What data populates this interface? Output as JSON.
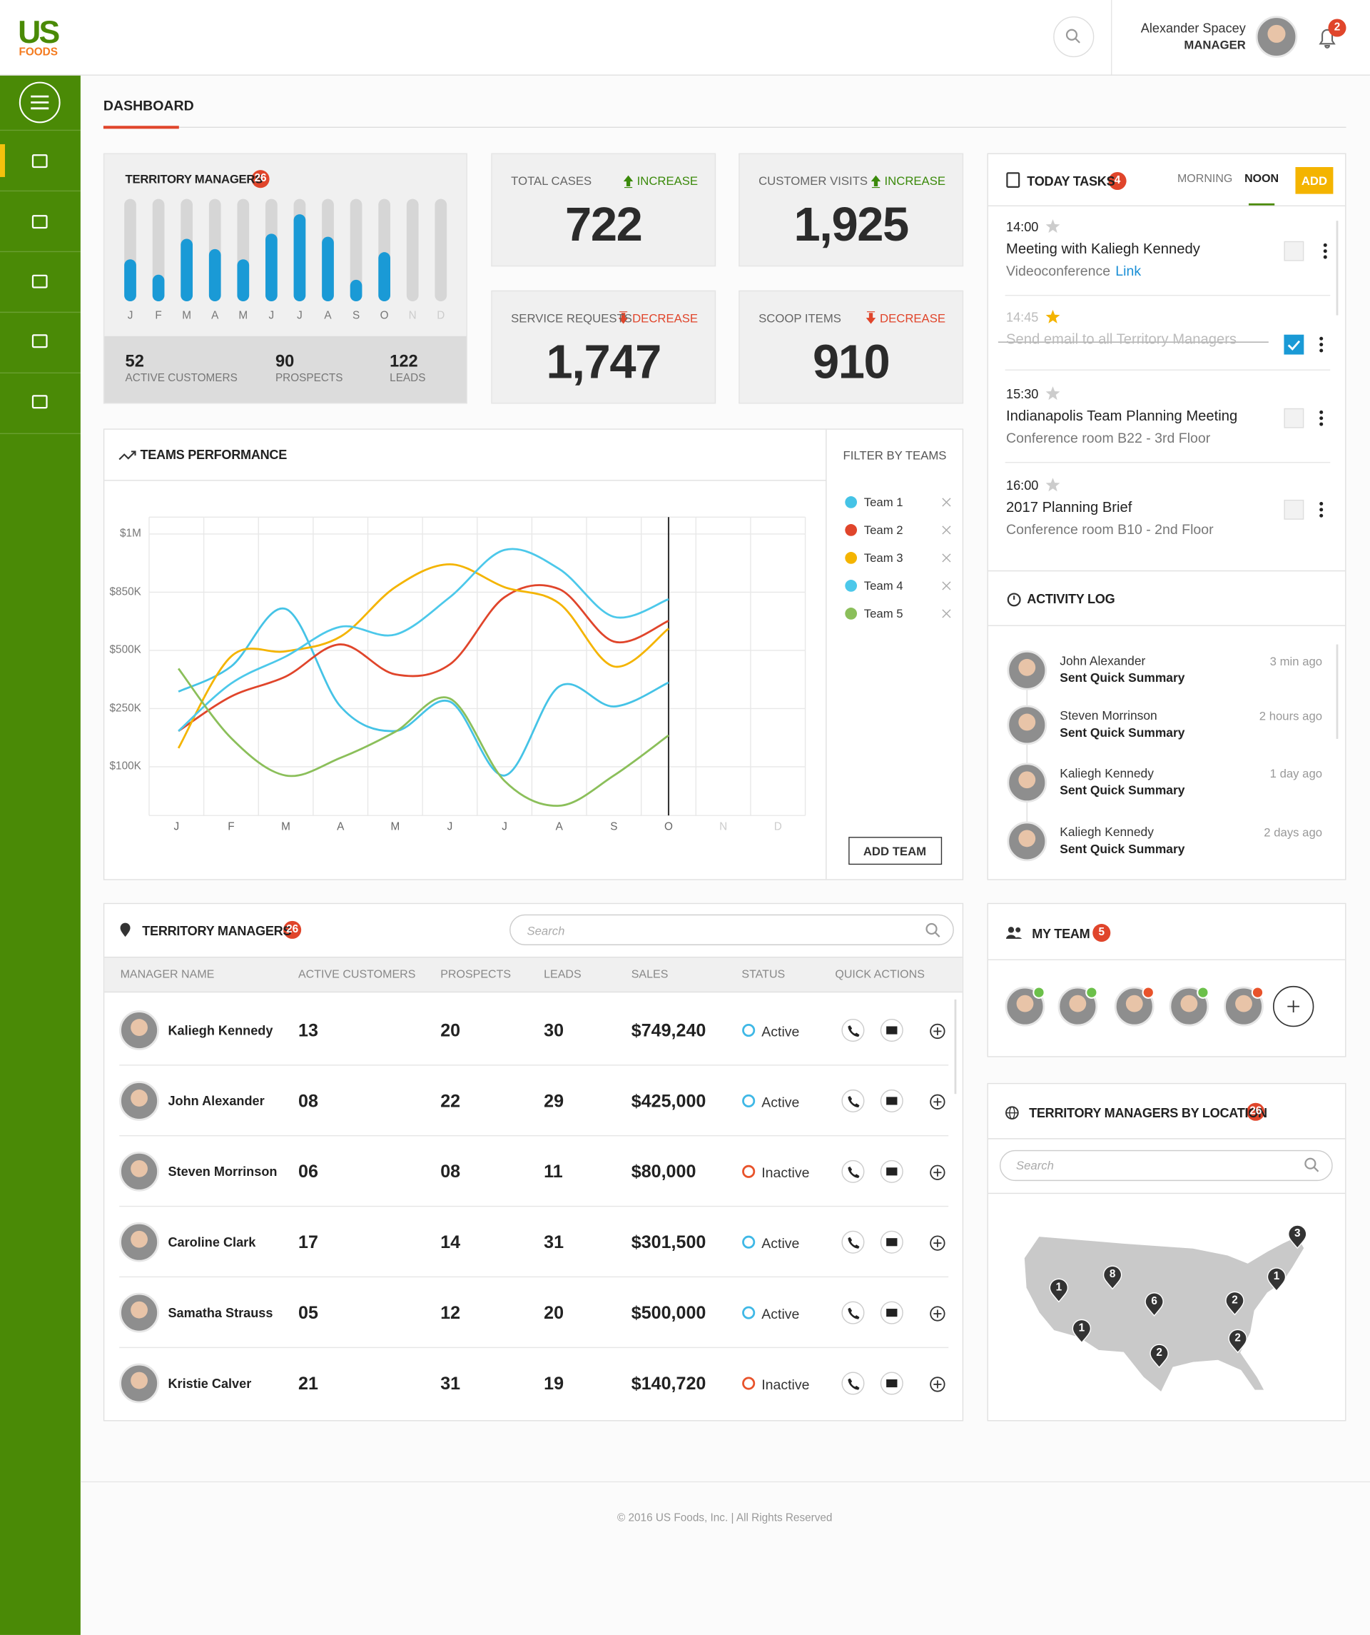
{
  "header": {
    "logo_main": "US",
    "logo_sub": "FOODS",
    "user_name": "Alexander Spacey",
    "user_role": "MANAGER",
    "notifications": "2"
  },
  "page_title": "DASHBOARD",
  "territory_summary": {
    "title": "TERRITORY MANAGERS",
    "count": "26",
    "chart_data": {
      "type": "bar",
      "categories": [
        "J",
        "F",
        "M",
        "A",
        "M",
        "J",
        "J",
        "A",
        "S",
        "O",
        "N",
        "D"
      ],
      "values": [
        41,
        26,
        61,
        51,
        41,
        66,
        85,
        63,
        21,
        48,
        null,
        null
      ],
      "ylim": [
        0,
        100
      ],
      "color": "#1a9ad6",
      "track_color": "#d6d6d6"
    },
    "stats": [
      {
        "value": "52",
        "label": "ACTIVE CUSTOMERS"
      },
      {
        "value": "90",
        "label": "PROSPECTS"
      },
      {
        "value": "122",
        "label": "LEADS"
      }
    ]
  },
  "kpis": [
    {
      "label": "TOTAL CASES",
      "trend": "INCREASE",
      "direction": "up",
      "value": "722"
    },
    {
      "label": "CUSTOMER VISITS",
      "trend": "INCREASE",
      "direction": "up",
      "value": "1,925"
    },
    {
      "label": "SERVICE REQUESTS",
      "trend": "DECREASE",
      "direction": "down",
      "value": "1,747"
    },
    {
      "label": "SCOOP ITEMS",
      "trend": "DECREASE",
      "direction": "down",
      "value": "910"
    }
  ],
  "teams_performance": {
    "title": "TEAMS PERFORMANCE",
    "filter_title": "FILTER BY TEAMS",
    "add_button": "ADD TEAM",
    "chart_data": {
      "type": "line",
      "categories": [
        "J",
        "F",
        "M",
        "A",
        "M",
        "J",
        "J",
        "A",
        "S",
        "O",
        "N",
        "D"
      ],
      "series": [
        {
          "name": "Team 1",
          "color": "#45c3e6",
          "values": [
            323000,
            431000,
            749000,
            259000,
            192000,
            280000,
            82000,
            345000,
            259000,
            362000,
            null,
            null
          ]
        },
        {
          "name": "Team 2",
          "color": "#e0452b",
          "values": [
            192000,
            302000,
            388000,
            536000,
            397000,
            440000,
            820000,
            858000,
            553000,
            678000,
            null,
            null
          ]
        },
        {
          "name": "Team 3",
          "color": "#f4b400",
          "values": [
            148000,
            474000,
            496000,
            583000,
            863000,
            922000,
            863000,
            783000,
            431000,
            631000,
            null,
            null
          ]
        },
        {
          "name": "Team 4",
          "color": "#4cc8ea",
          "values": [
            192000,
            358000,
            474000,
            642000,
            595000,
            820000,
            959000,
            910000,
            702000,
            808000,
            null,
            null
          ]
        },
        {
          "name": "Team 5",
          "color": "#8bbf5a",
          "values": [
            422000,
            174000,
            82000,
            123000,
            190000,
            293000,
            71000,
            20000,
            82000,
            181000,
            null,
            null
          ]
        }
      ],
      "ylim": [
        0,
        1100000
      ],
      "yticks": [
        {
          "value": 100000,
          "label": "$100K"
        },
        {
          "value": 250000,
          "label": "$250K"
        },
        {
          "value": 500000,
          "label": "$500K"
        },
        {
          "value": 850000,
          "label": "$850K"
        },
        {
          "value": 1000000,
          "label": "$1M"
        }
      ],
      "grid": true
    }
  },
  "territory_table": {
    "title": "TERRITORY MANAGERS",
    "count": "26",
    "search_placeholder": "Search",
    "columns": [
      "MANAGER NAME",
      "ACTIVE CUSTOMERS",
      "PROSPECTS",
      "LEADS",
      "SALES",
      "STATUS",
      "QUICK ACTIONS"
    ],
    "rows": [
      {
        "name": "Kaliegh Kennedy",
        "active": "13",
        "prospects": "20",
        "leads": "30",
        "sales": "$749,240",
        "status": "Active",
        "status_color": "#3fb8e6"
      },
      {
        "name": "John Alexander",
        "active": "08",
        "prospects": "22",
        "leads": "29",
        "sales": "$425,000",
        "status": "Active",
        "status_color": "#3fb8e6"
      },
      {
        "name": "Steven Morrinson",
        "active": "06",
        "prospects": "08",
        "leads": "11",
        "sales": "$80,000",
        "status": "Inactive",
        "status_color": "#e8532b"
      },
      {
        "name": "Caroline Clark",
        "active": "17",
        "prospects": "14",
        "leads": "31",
        "sales": "$301,500",
        "status": "Active",
        "status_color": "#3fb8e6"
      },
      {
        "name": "Samatha Strauss",
        "active": "05",
        "prospects": "12",
        "leads": "20",
        "sales": "$500,000",
        "status": "Active",
        "status_color": "#3fb8e6"
      },
      {
        "name": "Kristie Calver",
        "active": "21",
        "prospects": "31",
        "leads": "19",
        "sales": "$140,720",
        "status": "Inactive",
        "status_color": "#e8532b"
      }
    ]
  },
  "tasks": {
    "title": "TODAY TASKS",
    "count": "4",
    "tabs": [
      "MORNING",
      "NOON"
    ],
    "active_tab": 1,
    "add": "ADD",
    "items": [
      {
        "time": "14:00",
        "title": "Meeting with Kaliegh Kennedy",
        "subtitle": "Videoconference",
        "link": "Link",
        "starred": false,
        "done": false
      },
      {
        "time": "14:45",
        "title": "Send email to all Territory Managers",
        "starred": true,
        "done": true
      },
      {
        "time": "15:30",
        "title": "Indianapolis Team Planning Meeting",
        "subtitle": "Conference room B22 - 3rd Floor",
        "starred": false,
        "done": false
      },
      {
        "time": "16:00",
        "title": "2017 Planning Brief",
        "subtitle": "Conference room B10 - 2nd Floor",
        "starred": false,
        "done": false
      }
    ]
  },
  "activity": {
    "title": "ACTIVITY LOG",
    "items": [
      {
        "name": "John Alexander",
        "action": "Sent Quick Summary",
        "time": "3 min ago"
      },
      {
        "name": "Steven Morrinson",
        "action": "Sent Quick Summary",
        "time": "2 hours ago"
      },
      {
        "name": "Kaliegh Kennedy",
        "action": "Sent Quick Summary",
        "time": "1 day ago"
      },
      {
        "name": "Kaliegh Kennedy",
        "action": "Sent Quick Summary",
        "time": "2 days ago"
      }
    ]
  },
  "my_team": {
    "title": "MY TEAM",
    "count": "5",
    "status_colors": [
      "#6cc04a",
      "#6cc04a",
      "#e8532b",
      "#6cc04a",
      "#e8532b"
    ]
  },
  "location": {
    "title": "TERRITORY MANAGERS BY LOCATION",
    "count": "26",
    "search_placeholder": "Search",
    "pins": [
      "1",
      "8",
      "1",
      "6",
      "2",
      "2",
      "2",
      "1",
      "3"
    ]
  },
  "footer": "© 2016 US Foods, Inc. | All Rights Reserved"
}
